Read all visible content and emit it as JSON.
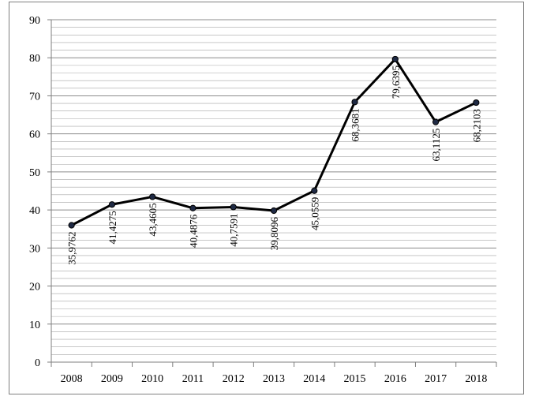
{
  "chart_data": {
    "type": "line",
    "title": "",
    "xlabel": "",
    "ylabel": "",
    "categories": [
      "2008",
      "2009",
      "2010",
      "2011",
      "2012",
      "2013",
      "2014",
      "2015",
      "2016",
      "2017",
      "2018"
    ],
    "series": [
      {
        "values": [
          35.9762,
          41.4275,
          43.4605,
          40.4876,
          40.7591,
          39.8096,
          45.0559,
          68.3681,
          79.6395,
          63.1125,
          68.2103
        ],
        "labels": [
          "35,9762",
          "41,4275",
          "43,4605",
          "40,4876",
          "40,7591",
          "39,8096",
          "45,0559",
          "68,3681",
          "79,6395",
          "63,1125",
          "68,2103"
        ]
      }
    ],
    "ylim": [
      0,
      90
    ],
    "yticks": [
      "0",
      "10",
      "20",
      "30",
      "40",
      "50",
      "60",
      "70",
      "80",
      "90"
    ],
    "grid": true,
    "legend": "none",
    "colors": {
      "line": "#000000",
      "marker": "#1f2a44",
      "grid": "#a6a6a6",
      "axis": "#7f7f7f"
    }
  }
}
